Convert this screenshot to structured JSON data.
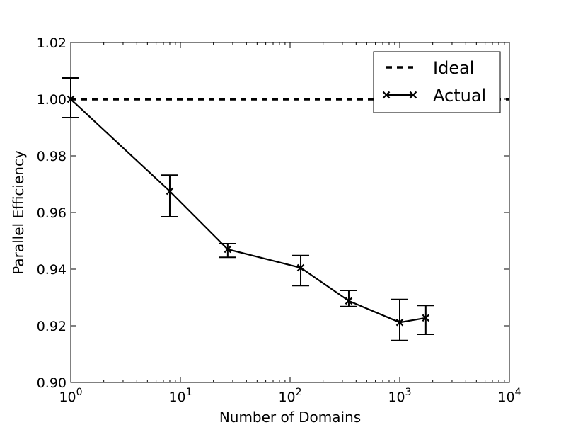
{
  "chart_data": {
    "type": "line",
    "title": "",
    "xlabel": "Number of Domains",
    "ylabel": "Parallel Efficiency",
    "xscale": "log",
    "xlim": [
      1,
      10000
    ],
    "ylim": [
      0.9,
      1.02
    ],
    "x_ticks": [
      {
        "value": 1,
        "base": "10",
        "exp": "0"
      },
      {
        "value": 10,
        "base": "10",
        "exp": "1"
      },
      {
        "value": 100,
        "base": "10",
        "exp": "2"
      },
      {
        "value": 1000,
        "base": "10",
        "exp": "3"
      },
      {
        "value": 10000,
        "base": "10",
        "exp": "4"
      }
    ],
    "y_ticks": [
      {
        "value": 0.9,
        "label": "0.90"
      },
      {
        "value": 0.92,
        "label": "0.92"
      },
      {
        "value": 0.94,
        "label": "0.94"
      },
      {
        "value": 0.96,
        "label": "0.96"
      },
      {
        "value": 0.98,
        "label": "0.98"
      },
      {
        "value": 1.0,
        "label": "1.00"
      },
      {
        "value": 1.02,
        "label": "1.02"
      }
    ],
    "grid": false,
    "legend": {
      "placement": "upper right",
      "entries": [
        {
          "name": "Ideal",
          "style": "dashed"
        },
        {
          "name": "Actual",
          "style": "solid-with-x-markers"
        }
      ]
    },
    "series": [
      {
        "name": "Ideal",
        "color": "#000000",
        "x": [
          1,
          10000
        ],
        "y": [
          1.0,
          1.0
        ]
      },
      {
        "name": "Actual",
        "color": "#000000",
        "x": [
          1,
          8,
          27,
          125,
          343,
          1000,
          1728
        ],
        "y": [
          1.0,
          0.9675,
          0.947,
          0.9405,
          0.9288,
          0.9212,
          0.9228
        ],
        "err_low": [
          0.9935,
          0.9585,
          0.9442,
          0.9342,
          0.9268,
          0.9148,
          0.917
        ],
        "err_high": [
          1.0075,
          0.9732,
          0.949,
          0.9448,
          0.9325,
          0.9293,
          0.9272
        ]
      }
    ]
  }
}
